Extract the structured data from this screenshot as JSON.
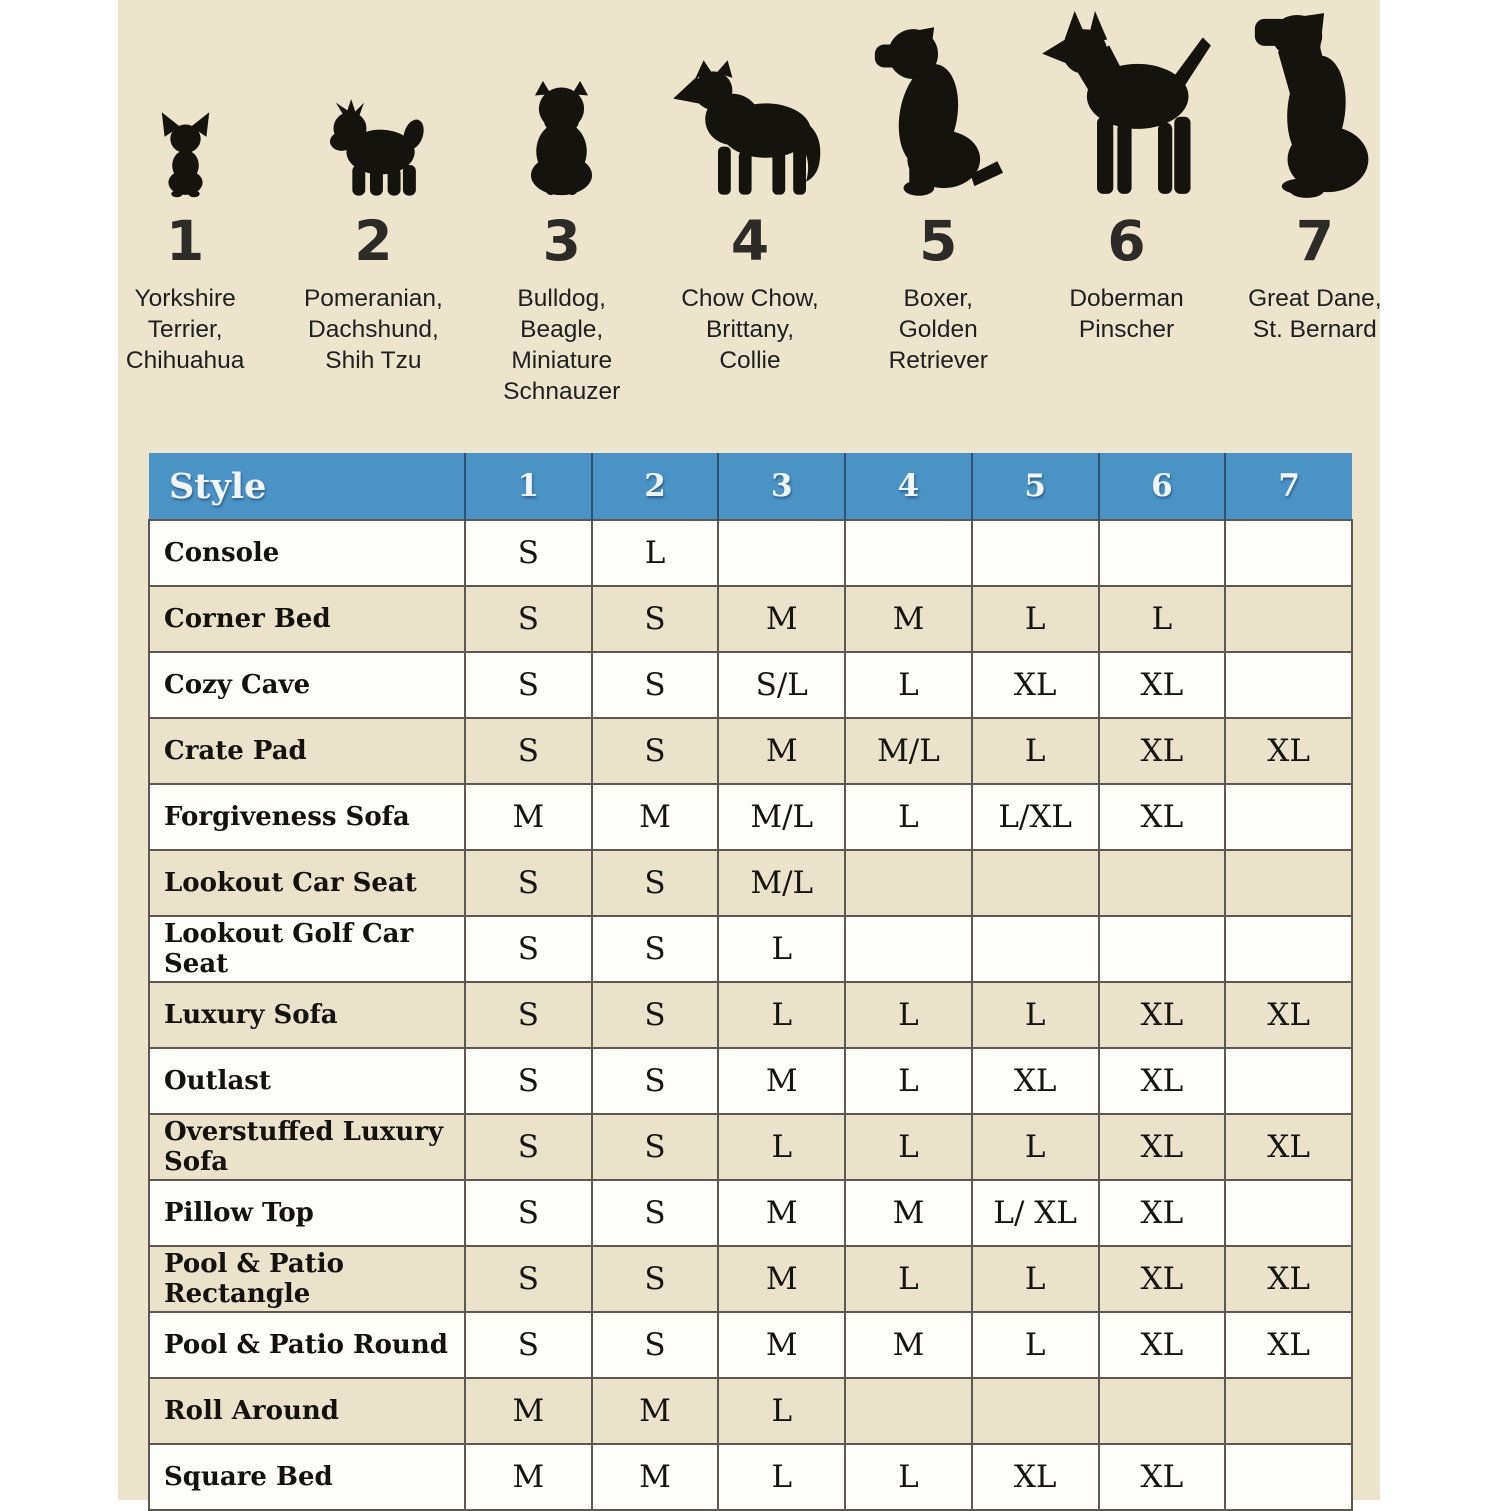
{
  "colors": {
    "page_bg": "#ffffff",
    "panel_bg": "#ece4cd",
    "header_bg": "#4b92c5",
    "header_text": "#eef7fd",
    "row_white": "#fdfdfa",
    "row_beige": "#eae2ca",
    "border": "#5d5952",
    "silhouette": "#15130e"
  },
  "dogs": {
    "items": [
      {
        "number": "1",
        "breeds": "Yorkshire\nTerrier,\nChihuahua",
        "icon": "yorkshire-terrier-icon"
      },
      {
        "number": "2",
        "breeds": "Pomeranian,\nDachshund,\nShih Tzu",
        "icon": "shih-tzu-icon"
      },
      {
        "number": "3",
        "breeds": "Bulldog,\nBeagle,\nMiniature\nSchnauzer",
        "icon": "bulldog-icon"
      },
      {
        "number": "4",
        "breeds": "Chow Chow,\nBrittany,\nCollie",
        "icon": "collie-icon"
      },
      {
        "number": "5",
        "breeds": "Boxer,\nGolden\nRetriever",
        "icon": "boxer-icon"
      },
      {
        "number": "6",
        "breeds": "Doberman\nPinscher",
        "icon": "doberman-icon"
      },
      {
        "number": "7",
        "breeds": "Great Dane,\nSt. Bernard",
        "icon": "great-dane-icon"
      }
    ]
  },
  "table": {
    "style_header": "Style",
    "columns": [
      "1",
      "2",
      "3",
      "4",
      "5",
      "6",
      "7"
    ],
    "rows": [
      {
        "style": "Console",
        "sizes": [
          "S",
          "L",
          "",
          "",
          "",
          "",
          ""
        ]
      },
      {
        "style": "Corner Bed",
        "sizes": [
          "S",
          "S",
          "M",
          "M",
          "L",
          "L",
          ""
        ]
      },
      {
        "style": "Cozy Cave",
        "sizes": [
          "S",
          "S",
          "S/L",
          "L",
          "XL",
          "XL",
          ""
        ]
      },
      {
        "style": "Crate Pad",
        "sizes": [
          "S",
          "S",
          "M",
          "M/L",
          "L",
          "XL",
          "XL"
        ]
      },
      {
        "style": "Forgiveness Sofa",
        "sizes": [
          "M",
          "M",
          "M/L",
          "L",
          "L/XL",
          "XL",
          ""
        ]
      },
      {
        "style": "Lookout Car Seat",
        "sizes": [
          "S",
          "S",
          "M/L",
          "",
          "",
          "",
          ""
        ]
      },
      {
        "style": "Lookout Golf Car Seat",
        "sizes": [
          "S",
          "S",
          "L",
          "",
          "",
          "",
          ""
        ]
      },
      {
        "style": "Luxury Sofa",
        "sizes": [
          "S",
          "S",
          "L",
          "L",
          "L",
          "XL",
          "XL"
        ]
      },
      {
        "style": "Outlast",
        "sizes": [
          "S",
          "S",
          "M",
          "L",
          "XL",
          "XL",
          ""
        ]
      },
      {
        "style": "Overstuffed Luxury Sofa",
        "sizes": [
          "S",
          "S",
          "L",
          "L",
          "L",
          "XL",
          "XL"
        ]
      },
      {
        "style": "Pillow Top",
        "sizes": [
          "S",
          "S",
          "M",
          "M",
          "L/ XL",
          "XL",
          ""
        ]
      },
      {
        "style": "Pool & Patio Rectangle",
        "sizes": [
          "S",
          "S",
          "M",
          "L",
          "L",
          "XL",
          "XL"
        ]
      },
      {
        "style": "Pool & Patio Round",
        "sizes": [
          "S",
          "S",
          "M",
          "M",
          "L",
          "XL",
          "XL"
        ]
      },
      {
        "style": "Roll Around",
        "sizes": [
          "M",
          "M",
          "L",
          "",
          "",
          "",
          ""
        ]
      },
      {
        "style": "Square Bed",
        "sizes": [
          "M",
          "M",
          "L",
          "L",
          "XL",
          "XL",
          ""
        ]
      }
    ]
  },
  "chart_data": {
    "type": "table",
    "title": "Dog bed sizes by style and dog size group",
    "columns": [
      "Style",
      "1",
      "2",
      "3",
      "4",
      "5",
      "6",
      "7"
    ],
    "group_breeds": {
      "1": "Yorkshire Terrier, Chihuahua",
      "2": "Pomeranian, Dachshund, Shih Tzu",
      "3": "Bulldog, Beagle, Miniature Schnauzer",
      "4": "Chow Chow, Brittany, Collie",
      "5": "Boxer, Golden Retriever",
      "6": "Doberman Pinscher",
      "7": "Great Dane, St. Bernard"
    },
    "rows": [
      [
        "Console",
        "S",
        "L",
        "",
        "",
        "",
        "",
        ""
      ],
      [
        "Corner Bed",
        "S",
        "S",
        "M",
        "M",
        "L",
        "L",
        ""
      ],
      [
        "Cozy Cave",
        "S",
        "S",
        "S/L",
        "L",
        "XL",
        "XL",
        ""
      ],
      [
        "Crate Pad",
        "S",
        "S",
        "M",
        "M/L",
        "L",
        "XL",
        "XL"
      ],
      [
        "Forgiveness Sofa",
        "M",
        "M",
        "M/L",
        "L",
        "L/XL",
        "XL",
        ""
      ],
      [
        "Lookout Car Seat",
        "S",
        "S",
        "M/L",
        "",
        "",
        "",
        ""
      ],
      [
        "Lookout Golf Car Seat",
        "S",
        "S",
        "L",
        "",
        "",
        "",
        ""
      ],
      [
        "Luxury Sofa",
        "S",
        "S",
        "L",
        "L",
        "L",
        "XL",
        "XL"
      ],
      [
        "Outlast",
        "S",
        "S",
        "M",
        "L",
        "XL",
        "XL",
        ""
      ],
      [
        "Overstuffed Luxury Sofa",
        "S",
        "S",
        "L",
        "L",
        "L",
        "XL",
        "XL"
      ],
      [
        "Pillow Top",
        "S",
        "S",
        "M",
        "M",
        "L/ XL",
        "XL",
        ""
      ],
      [
        "Pool & Patio Rectangle",
        "S",
        "S",
        "M",
        "L",
        "L",
        "XL",
        "XL"
      ],
      [
        "Pool & Patio Round",
        "S",
        "S",
        "M",
        "M",
        "L",
        "XL",
        "XL"
      ],
      [
        "Roll Around",
        "M",
        "M",
        "L",
        "",
        "",
        "",
        ""
      ],
      [
        "Square Bed",
        "M",
        "M",
        "L",
        "L",
        "XL",
        "XL",
        ""
      ]
    ]
  }
}
